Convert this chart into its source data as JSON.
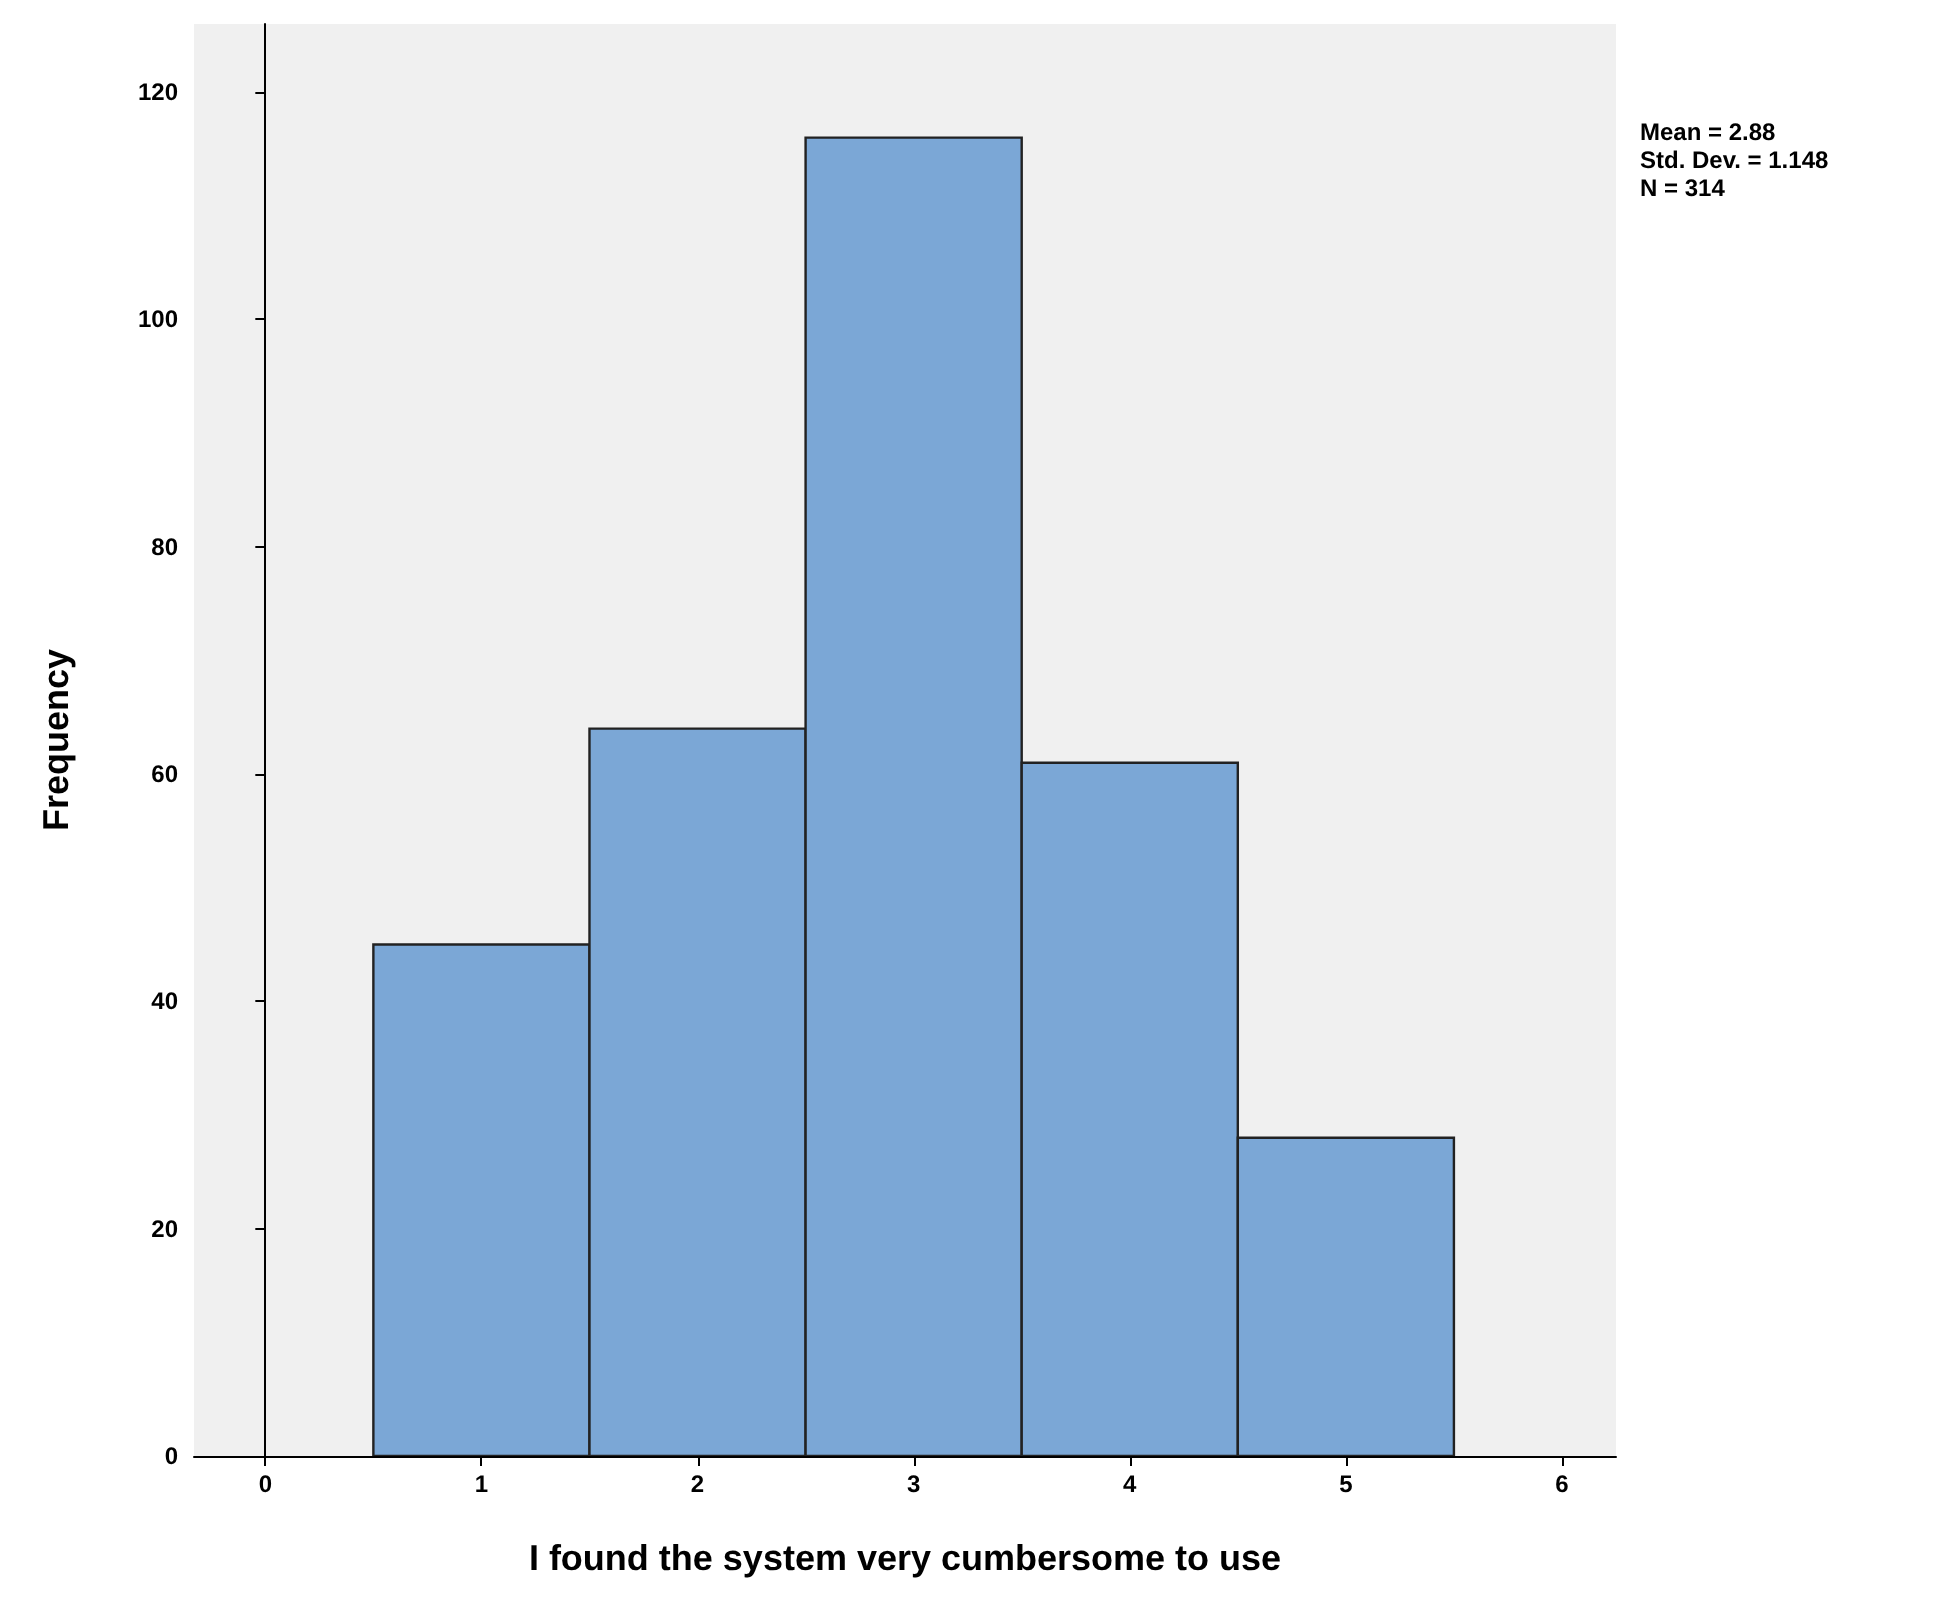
{
  "chart_data": {
    "type": "histogram",
    "xlabel": "I found the system very cumbersome to use",
    "ylabel": "Frequency",
    "bins": [
      0.5,
      1.5,
      2.5,
      3.5,
      4.5,
      5.5
    ],
    "values": [
      45,
      64,
      116,
      61,
      28
    ],
    "color": "#7ba7d6",
    "xlim": [
      -0.33,
      6.25
    ],
    "xticks": [
      0,
      1,
      2,
      3,
      4,
      5,
      6
    ],
    "ylim": [
      0,
      126
    ],
    "yticks": [
      0,
      20,
      40,
      60,
      80,
      100,
      120
    ],
    "annotations": [
      "Mean = 2.88",
      "Std. Dev. = 1.148",
      "N = 314"
    ]
  }
}
